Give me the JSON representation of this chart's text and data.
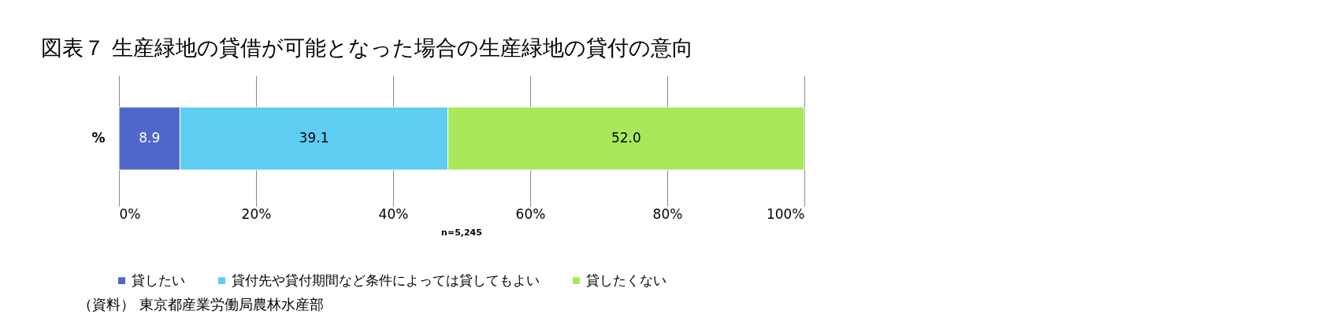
{
  "chart_data": {
    "type": "bar",
    "orientation": "horizontal",
    "stacked": true,
    "title": "図表７ 生産緑地の貸借が可能となった場合の生産緑地の貸付の意向",
    "categories": [
      "%"
    ],
    "series": [
      {
        "name": "貸したい",
        "color": "#4f67c9",
        "values": [
          8.9
        ],
        "value_labels": [
          "8.9"
        ]
      },
      {
        "name": "貸付先や貸付期間など条件によっては貸してもよい",
        "color": "#5fcdf2",
        "values": [
          39.1
        ],
        "value_labels": [
          "39.1"
        ]
      },
      {
        "name": "貸したくない",
        "color": "#a8e85a",
        "values": [
          52.0
        ],
        "value_labels": [
          "52.0"
        ]
      }
    ],
    "xlim": [
      0,
      100
    ],
    "xticks": [
      {
        "value": 0,
        "label": "0%"
      },
      {
        "value": 20,
        "label": "20%"
      },
      {
        "value": 40,
        "label": "40%"
      },
      {
        "value": 60,
        "label": "60%"
      },
      {
        "value": 80,
        "label": "80%"
      },
      {
        "value": 100,
        "label": "100%"
      }
    ],
    "grid": "x",
    "legend": "bottom",
    "annotations": [
      "n=5,245",
      "（資料） 東京都産業労働局農林水産部"
    ]
  }
}
